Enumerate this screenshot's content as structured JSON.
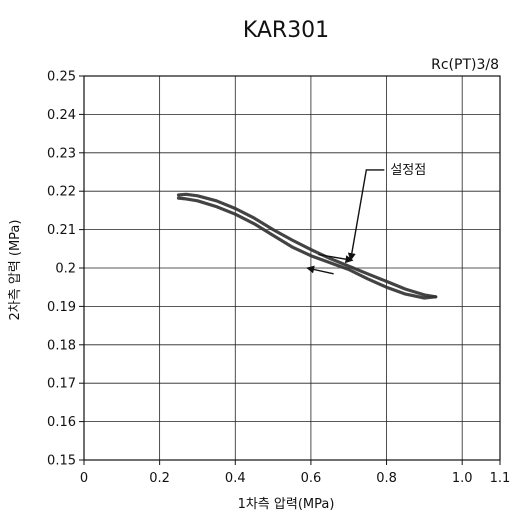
{
  "chart_data": {
    "type": "line",
    "title": "KAR301",
    "subtitle": "Rc(PT)3/8",
    "xlabel": "1차측 압력(MPa)",
    "ylabel": "2차측 압력 (MPa)",
    "xlim": [
      0,
      1.1
    ],
    "ylim": [
      0.15,
      0.25
    ],
    "x_ticks": [
      0,
      0.2,
      0.4,
      0.6,
      0.8,
      1.0,
      1.1
    ],
    "x_tick_labels": [
      "0",
      "0.2",
      "0.4",
      "0.6",
      "0.8",
      "1.0",
      "1.1"
    ],
    "y_ticks": [
      0.15,
      0.16,
      0.17,
      0.18,
      0.19,
      0.2,
      0.21,
      0.22,
      0.23,
      0.24,
      0.25
    ],
    "y_tick_labels": [
      "0.15",
      "0.16",
      "0.17",
      "0.18",
      "0.19",
      "0.2",
      "0.21",
      "0.22",
      "0.23",
      "0.24",
      "0.25"
    ],
    "grid": true,
    "series": [
      {
        "color": "#333333",
        "x": [
          0.25,
          0.27,
          0.3,
          0.35,
          0.4,
          0.45,
          0.5,
          0.55,
          0.6,
          0.65,
          0.7,
          0.75,
          0.8,
          0.85,
          0.9,
          0.93
        ],
        "y": [
          0.219,
          0.2192,
          0.2188,
          0.2175,
          0.2155,
          0.213,
          0.21,
          0.2073,
          0.2048,
          0.2025,
          0.2005,
          0.1985,
          0.1965,
          0.1945,
          0.193,
          0.1925
        ]
      },
      {
        "color": "#333333",
        "x": [
          0.93,
          0.9,
          0.85,
          0.8,
          0.75,
          0.7,
          0.65,
          0.6,
          0.55,
          0.5,
          0.45,
          0.4,
          0.35,
          0.3,
          0.27,
          0.25
        ],
        "y": [
          0.1925,
          0.1922,
          0.1932,
          0.195,
          0.1972,
          0.1996,
          0.2014,
          0.2032,
          0.2055,
          0.2085,
          0.2115,
          0.214,
          0.216,
          0.2175,
          0.218,
          0.2182
        ]
      }
    ],
    "annotations": [
      {
        "text": "설정점",
        "point": [
          0.705,
          0.2005
        ],
        "label_at": [
          0.81,
          0.2245
        ]
      }
    ],
    "arrows": [
      {
        "from": [
          0.62,
          0.2035
        ],
        "to": [
          0.71,
          0.202
        ]
      },
      {
        "from": [
          0.66,
          0.1985
        ],
        "to": [
          0.59,
          0.2
        ]
      }
    ]
  }
}
